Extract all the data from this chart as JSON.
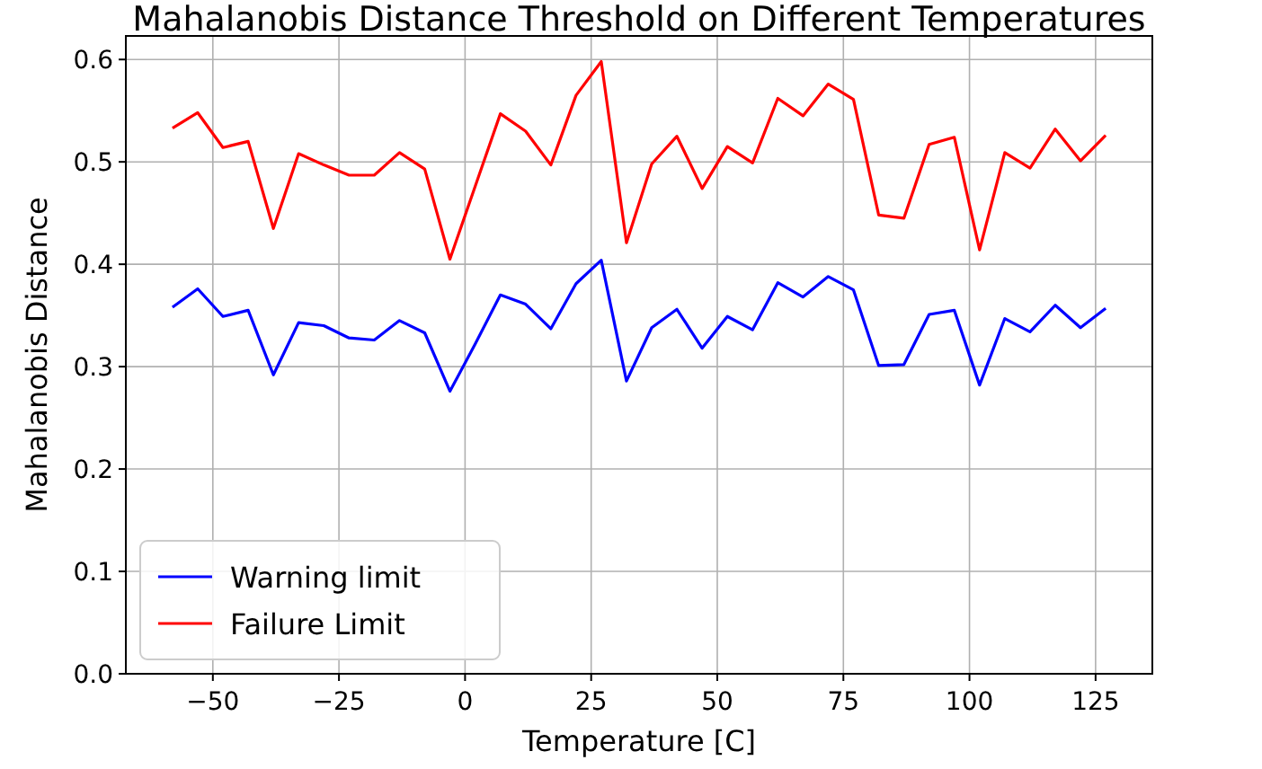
{
  "chart_data": {
    "type": "line",
    "title": "Mahalanobis Distance Threshold on Different Temperatures",
    "xlabel": "Temperature [C]",
    "ylabel": "Mahalanobis Distance",
    "x": [
      -58,
      -53,
      -48,
      -43,
      -38,
      -33,
      -28,
      -23,
      -18,
      -13,
      -8,
      -3,
      2,
      7,
      12,
      17,
      22,
      27,
      32,
      37,
      42,
      47,
      52,
      57,
      62,
      67,
      72,
      77,
      82,
      87,
      92,
      97,
      102,
      107,
      112,
      117,
      122,
      127
    ],
    "series": [
      {
        "name": "Warning limit",
        "color": "#0000ff",
        "values": [
          0.358,
          0.376,
          0.349,
          0.355,
          0.292,
          0.343,
          0.34,
          0.328,
          0.326,
          0.345,
          0.333,
          0.276,
          0.322,
          0.37,
          0.361,
          0.337,
          0.381,
          0.404,
          0.286,
          0.338,
          0.356,
          0.318,
          0.349,
          0.336,
          0.382,
          0.368,
          0.388,
          0.375,
          0.301,
          0.302,
          0.351,
          0.355,
          0.282,
          0.347,
          0.334,
          0.36,
          0.338,
          0.357
        ]
      },
      {
        "name": "Failure Limit",
        "color": "#ff0000",
        "values": [
          0.533,
          0.548,
          0.514,
          0.52,
          0.435,
          0.508,
          0.497,
          0.487,
          0.487,
          0.509,
          0.493,
          0.405,
          0.476,
          0.547,
          0.53,
          0.497,
          0.565,
          0.598,
          0.421,
          0.498,
          0.525,
          0.474,
          0.515,
          0.499,
          0.562,
          0.545,
          0.576,
          0.561,
          0.448,
          0.445,
          0.517,
          0.524,
          0.414,
          0.509,
          0.494,
          0.532,
          0.501,
          0.526
        ]
      }
    ],
    "xlim": [
      -67.25,
      136.25
    ],
    "ylim": [
      0,
      0.623
    ],
    "xticks": [
      {
        "value": -50,
        "label": "−50"
      },
      {
        "value": -25,
        "label": "−25"
      },
      0,
      25,
      50,
      75,
      100,
      125
    ],
    "yticks": [
      {
        "value": 0,
        "label": "0.0"
      },
      0.1,
      0.2,
      0.3,
      0.4,
      0.5,
      0.6
    ],
    "grid": true,
    "legend": "bottom left",
    "marker": "none",
    "line_style": "solid"
  }
}
